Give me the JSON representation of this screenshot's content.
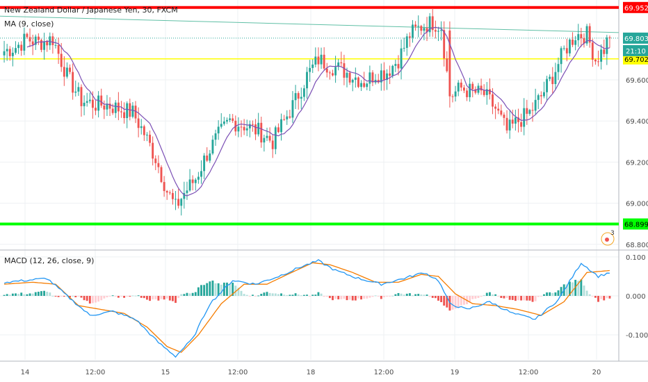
{
  "chart_title": "New Zealand Dollar / Japanese Yen, 30, FXCM",
  "indicator_label": "MA (9, close)",
  "macd_label": "MACD (12, 26, close, 9)",
  "countdown": "21:10",
  "events_badge": "3",
  "colors": {
    "up": "#26a69a",
    "down": "#ef5350",
    "ma": "#7b4fb5",
    "resistance": "#ff0000",
    "support": "#00ff00",
    "mid_level": "#ffff00",
    "trendline": "#5fbfa5",
    "macd_line": "#2196f3",
    "signal_line": "#f57c00"
  },
  "chart_data": [
    {
      "type": "candlestick",
      "title": "New Zealand Dollar / Japanese Yen, 30, FXCM",
      "ylim": [
        68.8,
        70.0
      ],
      "y_ticks": [
        "69.600",
        "69.400",
        "69.200",
        "69.000",
        "68.800"
      ],
      "x_ticks": [
        "14",
        "12:00",
        "15",
        "12:00",
        "18",
        "12:00",
        "19",
        "12:00",
        "20"
      ],
      "price_labels": [
        {
          "label": "69.952",
          "value": 69.952,
          "color": "#ff0000"
        },
        {
          "label": "69.803",
          "value": 69.803,
          "color": "#26a69a"
        },
        {
          "label": "69.702",
          "value": 69.702,
          "color": "#ffff00"
        },
        {
          "label": "68.899",
          "value": 68.899,
          "color": "#00ff00"
        }
      ],
      "horizontal_levels": [
        {
          "name": "resistance",
          "value": 69.952
        },
        {
          "name": "level",
          "value": 69.702
        },
        {
          "name": "support",
          "value": 68.899
        }
      ],
      "trendline": {
        "start": 69.91,
        "end": 69.83
      },
      "close_path": [
        [
          0,
          69.74
        ],
        [
          4,
          69.76
        ],
        [
          8,
          69.8
        ],
        [
          12,
          69.78
        ],
        [
          17,
          69.8
        ],
        [
          22,
          69.62
        ],
        [
          27,
          69.5
        ],
        [
          32,
          69.48
        ],
        [
          36,
          69.48
        ],
        [
          40,
          69.46
        ],
        [
          45,
          69.44
        ],
        [
          49,
          69.34
        ],
        [
          53,
          69.22
        ],
        [
          57,
          69.06
        ],
        [
          60,
          68.98
        ],
        [
          63,
          69.05
        ],
        [
          67,
          69.12
        ],
        [
          71,
          69.24
        ],
        [
          75,
          69.33
        ],
        [
          79,
          69.4
        ],
        [
          84,
          69.38
        ],
        [
          89,
          69.35
        ],
        [
          94,
          69.3
        ],
        [
          98,
          69.4
        ],
        [
          102,
          69.5
        ],
        [
          106,
          69.62
        ],
        [
          110,
          69.7
        ],
        [
          114,
          69.67
        ],
        [
          118,
          69.65
        ],
        [
          122,
          69.62
        ],
        [
          126,
          69.59
        ],
        [
          130,
          69.63
        ],
        [
          134,
          69.64
        ],
        [
          138,
          69.7
        ],
        [
          142,
          69.82
        ],
        [
          146,
          69.86
        ],
        [
          150,
          69.88
        ],
        [
          153,
          69.86
        ],
        [
          156,
          69.52
        ],
        [
          160,
          69.56
        ],
        [
          164,
          69.54
        ],
        [
          168,
          69.53
        ],
        [
          172,
          69.46
        ],
        [
          176,
          69.35
        ],
        [
          180,
          69.4
        ],
        [
          184,
          69.44
        ],
        [
          188,
          69.52
        ],
        [
          192,
          69.62
        ],
        [
          196,
          69.74
        ],
        [
          200,
          69.82
        ],
        [
          204,
          69.82
        ],
        [
          207,
          69.7
        ],
        [
          210,
          69.75
        ],
        [
          212,
          69.82
        ]
      ],
      "moving_average": {
        "name": "MA (9, close)",
        "period": 9
      }
    },
    {
      "type": "macd",
      "title": "MACD (12, 26, close, 9)",
      "ylim": [
        -0.175,
        0.11
      ],
      "y_ticks": [
        "0.100",
        "0.000",
        "-0.100"
      ],
      "macd_path": [
        [
          0,
          0.035
        ],
        [
          8,
          0.04
        ],
        [
          15,
          0.045
        ],
        [
          22,
          0.0
        ],
        [
          30,
          -0.05
        ],
        [
          38,
          -0.04
        ],
        [
          46,
          -0.06
        ],
        [
          54,
          -0.12
        ],
        [
          60,
          -0.155
        ],
        [
          66,
          -0.11
        ],
        [
          72,
          -0.02
        ],
        [
          80,
          0.04
        ],
        [
          88,
          0.03
        ],
        [
          96,
          0.05
        ],
        [
          104,
          0.075
        ],
        [
          110,
          0.09
        ],
        [
          116,
          0.065
        ],
        [
          124,
          0.045
        ],
        [
          132,
          0.03
        ],
        [
          140,
          0.045
        ],
        [
          147,
          0.06
        ],
        [
          152,
          0.04
        ],
        [
          156,
          -0.02
        ],
        [
          162,
          -0.035
        ],
        [
          170,
          -0.015
        ],
        [
          178,
          -0.045
        ],
        [
          186,
          -0.06
        ],
        [
          194,
          -0.01
        ],
        [
          202,
          0.085
        ],
        [
          208,
          0.05
        ],
        [
          212,
          0.06
        ]
      ],
      "signal_path": [
        [
          0,
          0.03
        ],
        [
          10,
          0.035
        ],
        [
          18,
          0.03
        ],
        [
          26,
          -0.025
        ],
        [
          34,
          -0.035
        ],
        [
          42,
          -0.045
        ],
        [
          50,
          -0.08
        ],
        [
          57,
          -0.13
        ],
        [
          62,
          -0.145
        ],
        [
          68,
          -0.1
        ],
        [
          76,
          -0.02
        ],
        [
          84,
          0.03
        ],
        [
          92,
          0.03
        ],
        [
          100,
          0.058
        ],
        [
          108,
          0.085
        ],
        [
          114,
          0.08
        ],
        [
          122,
          0.06
        ],
        [
          130,
          0.035
        ],
        [
          138,
          0.035
        ],
        [
          146,
          0.055
        ],
        [
          152,
          0.05
        ],
        [
          158,
          0.005
        ],
        [
          164,
          -0.02
        ],
        [
          172,
          -0.025
        ],
        [
          180,
          -0.035
        ],
        [
          188,
          -0.05
        ],
        [
          196,
          -0.015
        ],
        [
          204,
          0.06
        ],
        [
          212,
          0.065
        ]
      ]
    }
  ]
}
